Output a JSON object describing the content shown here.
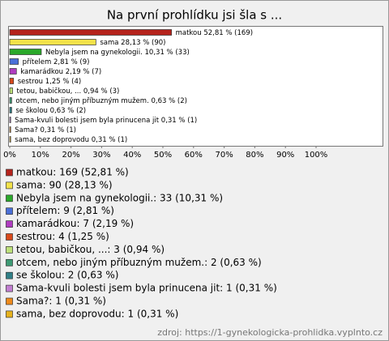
{
  "chart_data": {
    "type": "bar",
    "orientation": "horizontal",
    "title": "Na první prohlídku jsi šla s ...",
    "categories": [
      "matkou",
      "sama",
      "Nebyla jsem na gynekologii.",
      "přítelem",
      "kamarádkou",
      "sestrou",
      "tetou, babičkou, ...",
      "otcem, nebo jiným příbuzným mužem.",
      "se školou",
      "Sama-kvuli bolesti jsem byla prinucena jit",
      "Sama?",
      "sama, bez doprovodu"
    ],
    "values": [
      52.81,
      28.13,
      10.31,
      2.81,
      2.19,
      1.25,
      0.94,
      0.63,
      0.63,
      0.31,
      0.31,
      0.31
    ],
    "value_labels": [
      "52,81 %",
      "28,13 %",
      "10,31 %",
      "2,81 %",
      "2,19 %",
      "1,25 %",
      "0,94 %",
      "0,63 %",
      "0,63 %",
      "0,31 %",
      "0,31 %",
      "0,31 %"
    ],
    "count_labels": [
      "(169)",
      "(90)",
      "(33)",
      "(9)",
      "(7)",
      "(4)",
      "(3)",
      "(2)",
      "(2)",
      "(1)",
      "(1)",
      "(1)"
    ],
    "colors": [
      "#b5231c",
      "#f2e24a",
      "#2aa82a",
      "#4a6fd8",
      "#b03cc0",
      "#d94a1c",
      "#bde07a",
      "#3e9a74",
      "#2f7f86",
      "#c27fd2",
      "#ee8a1c",
      "#e6b21c"
    ],
    "legend_labels": [
      "matkou: 169 (52,81 %)",
      "sama: 90 (28,13 %)",
      "Nebyla jsem na gynekologii.: 33 (10,31 %)",
      "přítelem: 9 (2,81 %)",
      "kamarádkou: 7 (2,19 %)",
      "sestrou: 4 (1,25 %)",
      "tetou, babičkou, ...: 3 (0,94 %)",
      "otcem, nebo jiným příbuzným mužem.: 2 (0,63 %)",
      "se školou: 2 (0,63 %)",
      "Sama-kvuli bolesti jsem byla prinucena jit: 1 (0,31 %)",
      "Sama?: 1 (0,31 %)",
      "sama, bez doprovodu: 1 (0,31 %)"
    ],
    "xlim": [
      0,
      100
    ],
    "xticks": [
      {
        "value": 0,
        "label": "0%"
      },
      {
        "value": 10,
        "label": "10%"
      },
      {
        "value": 20,
        "label": "20%"
      },
      {
        "value": 30,
        "label": "30%"
      },
      {
        "value": 40,
        "label": "40%"
      },
      {
        "value": 50,
        "label": "50%"
      },
      {
        "value": 60,
        "label": "60%"
      },
      {
        "value": 70,
        "label": "70%"
      },
      {
        "value": 80,
        "label": "80%"
      },
      {
        "value": 90,
        "label": "90%"
      },
      {
        "value": 100,
        "label": "100%"
      }
    ],
    "source": "zdroj: https://1-gynekologicka-prohlidka.vyplnto.cz"
  }
}
